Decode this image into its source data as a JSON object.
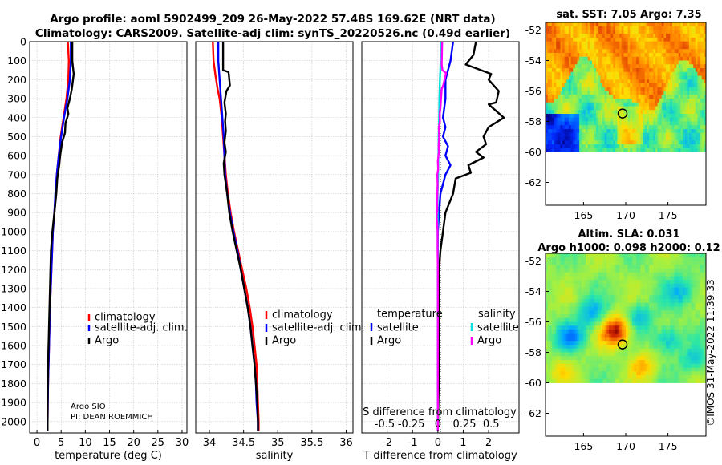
{
  "title": {
    "line1": "Argo profile: aoml 5902499_209 26-May-2022 57.48S 169.62E (NRT data)",
    "line2": "Climatology: CARS2009. Satellite-adj clim: synTS_20220526.nc (0.49d earlier)"
  },
  "depth_axis": {
    "ylim": [
      0,
      2060
    ],
    "ticks": [
      0,
      100,
      200,
      300,
      400,
      500,
      600,
      700,
      800,
      900,
      1000,
      1100,
      1200,
      1300,
      1400,
      1500,
      1600,
      1700,
      1800,
      1900,
      2000
    ]
  },
  "colors": {
    "climatology": "#ff0000",
    "satellite": "#0000ff",
    "argo": "#000000",
    "sat_salinity": "#00e0e0",
    "argo_salinity": "#ff00ff"
  },
  "chart_data": [
    {
      "type": "line",
      "id": "temperature",
      "xlabel": "temperature (deg C)",
      "xlim": [
        -1.5,
        31
      ],
      "xticks": [
        0,
        5,
        10,
        15,
        20,
        25,
        30
      ],
      "ylim": [
        0,
        2060
      ],
      "legend": {
        "placement": "lower-right",
        "entries": [
          "climatology",
          "satellite-adj. clim.",
          "Argo"
        ]
      },
      "annotation": [
        "Argo SIO",
        "PI: DEAN ROEMMICH"
      ],
      "series": [
        {
          "name": "climatology",
          "color": "#ff0000",
          "points": [
            [
              6.4,
              0
            ],
            [
              6.6,
              100
            ],
            [
              6.5,
              200
            ],
            [
              6.1,
              300
            ],
            [
              5.5,
              400
            ],
            [
              4.9,
              500
            ],
            [
              4.5,
              600
            ],
            [
              4.1,
              700
            ],
            [
              3.9,
              800
            ],
            [
              3.6,
              900
            ],
            [
              3.3,
              1000
            ],
            [
              3.0,
              1200
            ],
            [
              2.7,
              1400
            ],
            [
              2.5,
              1600
            ],
            [
              2.3,
              1800
            ],
            [
              2.2,
              2000
            ],
            [
              2.2,
              2050
            ]
          ]
        },
        {
          "name": "satellite-adj. clim.",
          "color": "#0000ff",
          "points": [
            [
              7.0,
              0
            ],
            [
              7.0,
              100
            ],
            [
              6.8,
              200
            ],
            [
              6.3,
              300
            ],
            [
              5.6,
              400
            ],
            [
              5.0,
              500
            ],
            [
              4.5,
              600
            ],
            [
              4.1,
              700
            ],
            [
              3.8,
              800
            ],
            [
              3.6,
              900
            ],
            [
              3.3,
              1000
            ],
            [
              3.0,
              1200
            ],
            [
              2.7,
              1400
            ],
            [
              2.5,
              1600
            ],
            [
              2.3,
              1800
            ],
            [
              2.2,
              2000
            ],
            [
              2.2,
              2050
            ]
          ]
        },
        {
          "name": "Argo",
          "color": "#000000",
          "points": [
            [
              7.3,
              0
            ],
            [
              7.3,
              100
            ],
            [
              7.6,
              170
            ],
            [
              7.2,
              250
            ],
            [
              6.8,
              300
            ],
            [
              6.3,
              350
            ],
            [
              6.5,
              380
            ],
            [
              5.9,
              430
            ],
            [
              5.8,
              480
            ],
            [
              5.2,
              530
            ],
            [
              4.8,
              600
            ],
            [
              4.6,
              650
            ],
            [
              4.2,
              720
            ],
            [
              4.0,
              800
            ],
            [
              3.6,
              900
            ],
            [
              3.2,
              1000
            ],
            [
              2.9,
              1100
            ],
            [
              2.7,
              1300
            ],
            [
              2.5,
              1500
            ],
            [
              2.3,
              1700
            ],
            [
              2.2,
              1900
            ],
            [
              2.2,
              2050
            ]
          ]
        }
      ]
    },
    {
      "type": "line",
      "id": "salinity",
      "xlabel": "salinity",
      "xlim": [
        33.8,
        36.1
      ],
      "xticks": [
        34,
        34.5,
        35,
        35.5,
        36
      ],
      "ylim": [
        0,
        2060
      ],
      "legend": {
        "placement": "lower-right",
        "entries": [
          "climatology",
          "satellite-adj. clim.",
          "Argo"
        ]
      },
      "series": [
        {
          "name": "climatology",
          "color": "#ff0000",
          "points": [
            [
              34.05,
              0
            ],
            [
              34.06,
              100
            ],
            [
              34.09,
              180
            ],
            [
              34.12,
              250
            ],
            [
              34.15,
              300
            ],
            [
              34.18,
              400
            ],
            [
              34.2,
              500
            ],
            [
              34.22,
              600
            ],
            [
              34.24,
              700
            ],
            [
              34.27,
              800
            ],
            [
              34.31,
              900
            ],
            [
              34.36,
              1000
            ],
            [
              34.42,
              1100
            ],
            [
              34.48,
              1200
            ],
            [
              34.54,
              1300
            ],
            [
              34.59,
              1400
            ],
            [
              34.63,
              1500
            ],
            [
              34.66,
              1600
            ],
            [
              34.69,
              1700
            ],
            [
              34.7,
              1800
            ],
            [
              34.71,
              1900
            ],
            [
              34.72,
              2000
            ],
            [
              34.72,
              2050
            ]
          ]
        },
        {
          "name": "satellite-adj. clim.",
          "color": "#0000ff",
          "points": [
            [
              34.13,
              0
            ],
            [
              34.13,
              100
            ],
            [
              34.15,
              200
            ],
            [
              34.17,
              300
            ],
            [
              34.19,
              400
            ],
            [
              34.21,
              500
            ],
            [
              34.22,
              600
            ],
            [
              34.23,
              700
            ],
            [
              34.26,
              800
            ],
            [
              34.3,
              900
            ],
            [
              34.35,
              1000
            ],
            [
              34.41,
              1100
            ],
            [
              34.46,
              1200
            ],
            [
              34.51,
              1300
            ],
            [
              34.56,
              1400
            ],
            [
              34.6,
              1500
            ],
            [
              34.63,
              1600
            ],
            [
              34.66,
              1700
            ],
            [
              34.68,
              1800
            ],
            [
              34.69,
              1900
            ],
            [
              34.71,
              2000
            ],
            [
              34.71,
              2050
            ]
          ]
        },
        {
          "name": "Argo",
          "color": "#000000",
          "points": [
            [
              34.2,
              0
            ],
            [
              34.2,
              150
            ],
            [
              34.28,
              160
            ],
            [
              34.3,
              230
            ],
            [
              34.25,
              260
            ],
            [
              34.22,
              320
            ],
            [
              34.24,
              380
            ],
            [
              34.23,
              420
            ],
            [
              34.24,
              470
            ],
            [
              34.22,
              530
            ],
            [
              34.24,
              580
            ],
            [
              34.21,
              640
            ],
            [
              34.22,
              700
            ],
            [
              34.26,
              800
            ],
            [
              34.29,
              900
            ],
            [
              34.34,
              1000
            ],
            [
              34.4,
              1100
            ],
            [
              34.46,
              1200
            ],
            [
              34.51,
              1300
            ],
            [
              34.56,
              1400
            ],
            [
              34.6,
              1500
            ],
            [
              34.63,
              1600
            ],
            [
              34.66,
              1700
            ],
            [
              34.68,
              1800
            ],
            [
              34.7,
              1900
            ],
            [
              34.71,
              2000
            ],
            [
              34.71,
              2050
            ]
          ]
        }
      ]
    },
    {
      "type": "line",
      "id": "differences",
      "xlabel": "T difference from climatology",
      "xlabel_top": "S difference from climatology",
      "xlim": [
        -3,
        3.2
      ],
      "xticks": [
        -2,
        -1,
        0,
        1,
        2
      ],
      "s_ticks": [
        -0.5,
        -0.25,
        0,
        0.25,
        0.5
      ],
      "s_tick_labels": [
        "-0.5",
        "-0.25",
        "0",
        "0.25",
        "0.5"
      ],
      "ylim": [
        0,
        2060
      ],
      "legend_temperature": {
        "title": "temperature",
        "entries": [
          "satellite",
          "Argo"
        ]
      },
      "legend_salinity": {
        "title": "salinity",
        "entries": [
          "satellite",
          "Argo"
        ]
      },
      "series": [
        {
          "name": "temperature satellite",
          "color": "#0000ff",
          "points": [
            [
              0.6,
              0
            ],
            [
              0.5,
              100
            ],
            [
              0.3,
              200
            ],
            [
              0.3,
              300
            ],
            [
              0.2,
              400
            ],
            [
              0.3,
              450
            ],
            [
              0.2,
              500
            ],
            [
              0.4,
              550
            ],
            [
              0.3,
              600
            ],
            [
              0.5,
              650
            ],
            [
              0.3,
              700
            ],
            [
              0.2,
              750
            ],
            [
              0.1,
              800
            ],
            [
              0.05,
              900
            ],
            [
              0,
              1000
            ],
            [
              0,
              1200
            ],
            [
              0,
              1400
            ],
            [
              0,
              2050
            ]
          ]
        },
        {
          "name": "temperature Argo",
          "color": "#000000",
          "points": [
            [
              1.5,
              0
            ],
            [
              1.4,
              70
            ],
            [
              1.1,
              120
            ],
            [
              2.1,
              170
            ],
            [
              2.0,
              200
            ],
            [
              2.4,
              260
            ],
            [
              2.3,
              320
            ],
            [
              2.0,
              330
            ],
            [
              2.6,
              400
            ],
            [
              2.0,
              450
            ],
            [
              1.8,
              500
            ],
            [
              1.9,
              540
            ],
            [
              1.5,
              580
            ],
            [
              1.8,
              610
            ],
            [
              1.2,
              650
            ],
            [
              1.3,
              690
            ],
            [
              0.7,
              720
            ],
            [
              0.6,
              800
            ],
            [
              0.3,
              900
            ],
            [
              0.2,
              1000
            ],
            [
              0.1,
              1100
            ],
            [
              0.05,
              1200
            ],
            [
              0.05,
              1400
            ],
            [
              0.05,
              1700
            ],
            [
              0,
              2050
            ]
          ]
        },
        {
          "name": "salinity satellite",
          "color": "#00e0e0",
          "points": [
            [
              0.12,
              0
            ],
            [
              0.11,
              100
            ],
            [
              0.08,
              200
            ],
            [
              0.06,
              300
            ],
            [
              0.05,
              400
            ],
            [
              0.03,
              500
            ],
            [
              0.02,
              600
            ],
            [
              0.01,
              700
            ],
            [
              -0.01,
              800
            ],
            [
              -0.01,
              900
            ],
            [
              -0.01,
              1000
            ],
            [
              0,
              1200
            ],
            [
              0,
              1400
            ],
            [
              0,
              2050
            ]
          ]
        },
        {
          "name": "salinity Argo",
          "color": "#ff00ff",
          "points": [
            [
              0.17,
              0
            ],
            [
              0.16,
              60
            ],
            [
              0.15,
              120
            ],
            [
              0.18,
              150
            ],
            [
              0.32,
              165
            ],
            [
              0.21,
              230
            ],
            [
              0.15,
              250
            ],
            [
              0.12,
              310
            ],
            [
              0.1,
              350
            ],
            [
              0.07,
              380
            ],
            [
              0.08,
              420
            ],
            [
              0.04,
              450
            ],
            [
              0.05,
              500
            ],
            [
              0.03,
              550
            ],
            [
              0.04,
              580
            ],
            [
              0,
              630
            ],
            [
              0.01,
              670
            ],
            [
              -0.02,
              700
            ],
            [
              -0.01,
              750
            ],
            [
              -0.02,
              800
            ],
            [
              -0.03,
              850
            ],
            [
              -0.02,
              880
            ],
            [
              -0.05,
              920
            ],
            [
              -0.03,
              950
            ],
            [
              -0.01,
              1000
            ],
            [
              -0.01,
              1100
            ],
            [
              0,
              1200
            ],
            [
              0,
              1500
            ],
            [
              0,
              2050
            ]
          ]
        }
      ]
    },
    {
      "type": "heatmap",
      "id": "sst_map",
      "title": "sat. SST: 7.05 Argo: 7.35",
      "xlim": [
        160.5,
        179.5
      ],
      "ylim": [
        -63.5,
        -51.5
      ],
      "xticks": [
        165,
        170,
        175
      ],
      "yticks": [
        -52,
        -54,
        -56,
        -58,
        -60,
        -62
      ],
      "ytick_labels": [
        "-52",
        "-54",
        "-56",
        "-58",
        "-60",
        "-62"
      ],
      "float_position": [
        169.62,
        -57.48
      ],
      "data_lat_min": -60
    },
    {
      "type": "heatmap",
      "id": "sla_map",
      "title_line1": "Altim. SLA: 0.031",
      "title_line2": "Argo h1000: 0.098 h2000: 0.12",
      "xlim": [
        160.5,
        179.5
      ],
      "ylim": [
        -63.5,
        -51.5
      ],
      "xticks": [
        165,
        170,
        175
      ],
      "yticks": [
        -52,
        -54,
        -56,
        -58,
        -60,
        -62
      ],
      "ytick_labels": [
        "-52",
        "-54",
        "-56",
        "-58",
        "-60",
        "-62"
      ],
      "float_position": [
        169.62,
        -57.48
      ],
      "data_lat_min": -60
    }
  ],
  "legend_labels": {
    "climatology": "climatology",
    "satellite_adj": "satellite-adj. clim.",
    "argo": "Argo",
    "temperature": "temperature",
    "salinity": "salinity",
    "satellite": "satellite"
  },
  "annotation": {
    "line1": "Argo SIO",
    "line2": "PI: DEAN ROEMMICH"
  },
  "credit": "©IMOS 31-May-2022 11:39:33"
}
